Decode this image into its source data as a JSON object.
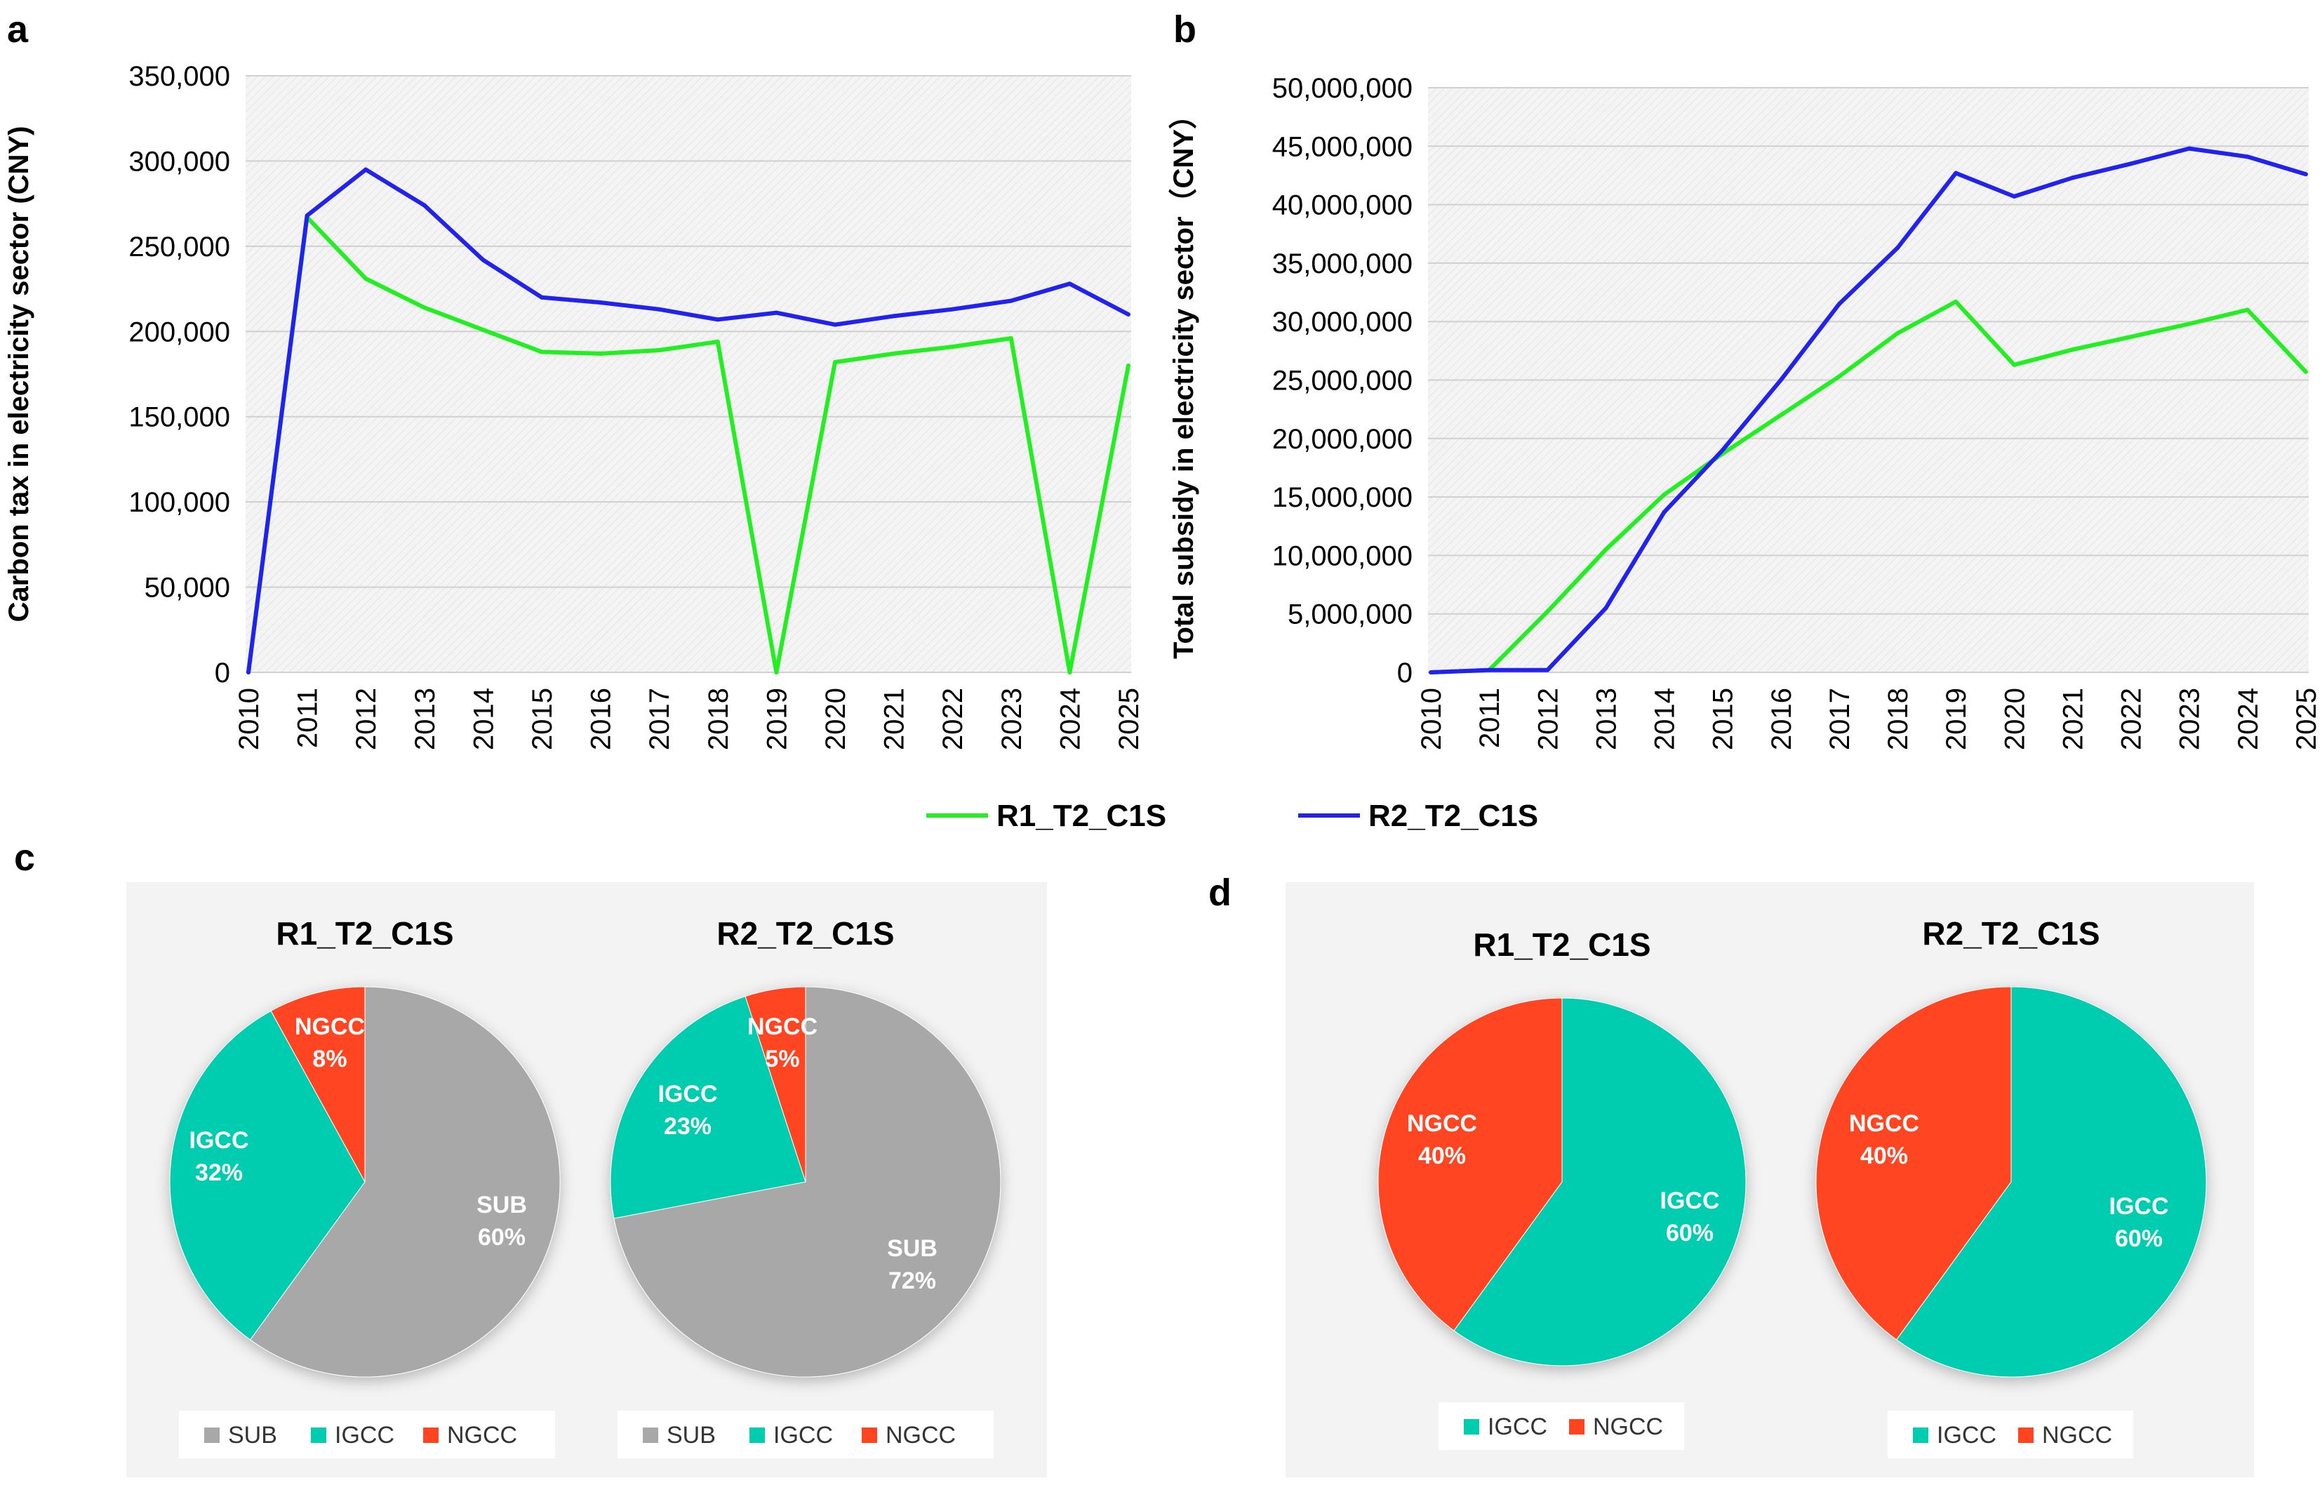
{
  "colors": {
    "R1_T2_C1S": "#22ee22",
    "R2_T2_C1S": "#2222ee",
    "SUB": "#a8a8a8",
    "IGCC": "#00cdb0",
    "NGCC": "#ff4422",
    "plot_bg": "#f2f2f2",
    "grid": "#d0d0d0"
  },
  "legend": {
    "series": [
      "R1_T2_C1S",
      "R2_T2_C1S"
    ]
  },
  "chart_data": [
    {
      "panel": "a",
      "type": "line",
      "ylabel": "Carbon tax in electricity sector (CNY)",
      "xlabel": "",
      "ylim": [
        0,
        350000
      ],
      "yticks": [
        0,
        50000,
        100000,
        150000,
        200000,
        250000,
        300000,
        350000
      ],
      "ytick_labels": [
        "0",
        "50,000",
        "100,000",
        "150,000",
        "200,000",
        "250,000",
        "300,000",
        "350,000"
      ],
      "categories": [
        "2010",
        "2011",
        "2012",
        "2013",
        "2014",
        "2015",
        "2016",
        "2017",
        "2018",
        "2019",
        "2020",
        "2021",
        "2022",
        "2023",
        "2024",
        "2025"
      ],
      "series": [
        {
          "name": "R1_T2_C1S",
          "values": [
            0,
            267000,
            231000,
            214000,
            201000,
            188000,
            187000,
            189000,
            194000,
            0,
            182000,
            187000,
            191000,
            196000,
            0,
            180000
          ]
        },
        {
          "name": "R2_T2_C1S",
          "values": [
            0,
            268000,
            295000,
            274000,
            242000,
            220000,
            217000,
            213000,
            207000,
            211000,
            204000,
            209000,
            213000,
            218000,
            228000,
            210000
          ]
        }
      ]
    },
    {
      "panel": "b",
      "type": "line",
      "ylabel": "Total subsidy in electricity sector（CNY）",
      "xlabel": "",
      "ylim": [
        0,
        50000000
      ],
      "yticks": [
        0,
        5000000,
        10000000,
        15000000,
        20000000,
        25000000,
        30000000,
        35000000,
        40000000,
        45000000,
        50000000
      ],
      "ytick_labels": [
        "0",
        "5,000,000",
        "10,000,000",
        "15,000,000",
        "20,000,000",
        "25,000,000",
        "30,000,000",
        "35,000,000",
        "40,000,000",
        "45,000,000",
        "50,000,000"
      ],
      "categories": [
        "2010",
        "2011",
        "2012",
        "2013",
        "2014",
        "2015",
        "2016",
        "2017",
        "2018",
        "2019",
        "2020",
        "2021",
        "2022",
        "2023",
        "2024",
        "2025"
      ],
      "series": [
        {
          "name": "R1_T2_C1S",
          "values": [
            0,
            200000,
            5200000,
            10500000,
            15200000,
            18700000,
            22000000,
            25300000,
            29000000,
            31700000,
            26300000,
            27600000,
            28700000,
            29800000,
            31000000,
            25700000
          ]
        },
        {
          "name": "R2_T2_C1S",
          "values": [
            0,
            200000,
            200000,
            5500000,
            13700000,
            19000000,
            25000000,
            31500000,
            36300000,
            42700000,
            40700000,
            42300000,
            43500000,
            44800000,
            44100000,
            42600000
          ]
        }
      ]
    },
    {
      "panel": "c",
      "type": "pie",
      "pies": [
        {
          "title": "R1_T2_C1S",
          "slices": [
            {
              "name": "SUB",
              "value": 60,
              "label": "SUB",
              "pct": "60%"
            },
            {
              "name": "IGCC",
              "value": 32,
              "label": "IGCC",
              "pct": "32%"
            },
            {
              "name": "NGCC",
              "value": 8,
              "label": "NGCC",
              "pct": "8%"
            }
          ],
          "legend": [
            "SUB",
            "IGCC",
            "NGCC"
          ]
        },
        {
          "title": "R2_T2_C1S",
          "slices": [
            {
              "name": "SUB",
              "value": 72,
              "label": "SUB",
              "pct": "72%"
            },
            {
              "name": "IGCC",
              "value": 23,
              "label": "IGCC",
              "pct": "23%"
            },
            {
              "name": "NGCC",
              "value": 5,
              "label": "NGCC",
              "pct": "5%"
            }
          ],
          "legend": [
            "SUB",
            "IGCC",
            "NGCC"
          ]
        }
      ]
    },
    {
      "panel": "d",
      "type": "pie",
      "pies": [
        {
          "title": "R1_T2_C1S",
          "slices": [
            {
              "name": "IGCC",
              "value": 60,
              "label": "IGCC",
              "pct": "60%"
            },
            {
              "name": "NGCC",
              "value": 40,
              "label": "NGCC",
              "pct": "40%"
            }
          ],
          "legend": [
            "IGCC",
            "NGCC"
          ]
        },
        {
          "title": "R2_T2_C1S",
          "slices": [
            {
              "name": "IGCC",
              "value": 60,
              "label": "IGCC",
              "pct": "60%"
            },
            {
              "name": "NGCC",
              "value": 40,
              "label": "NGCC",
              "pct": "40%"
            }
          ],
          "legend": [
            "IGCC",
            "NGCC"
          ]
        }
      ]
    }
  ]
}
